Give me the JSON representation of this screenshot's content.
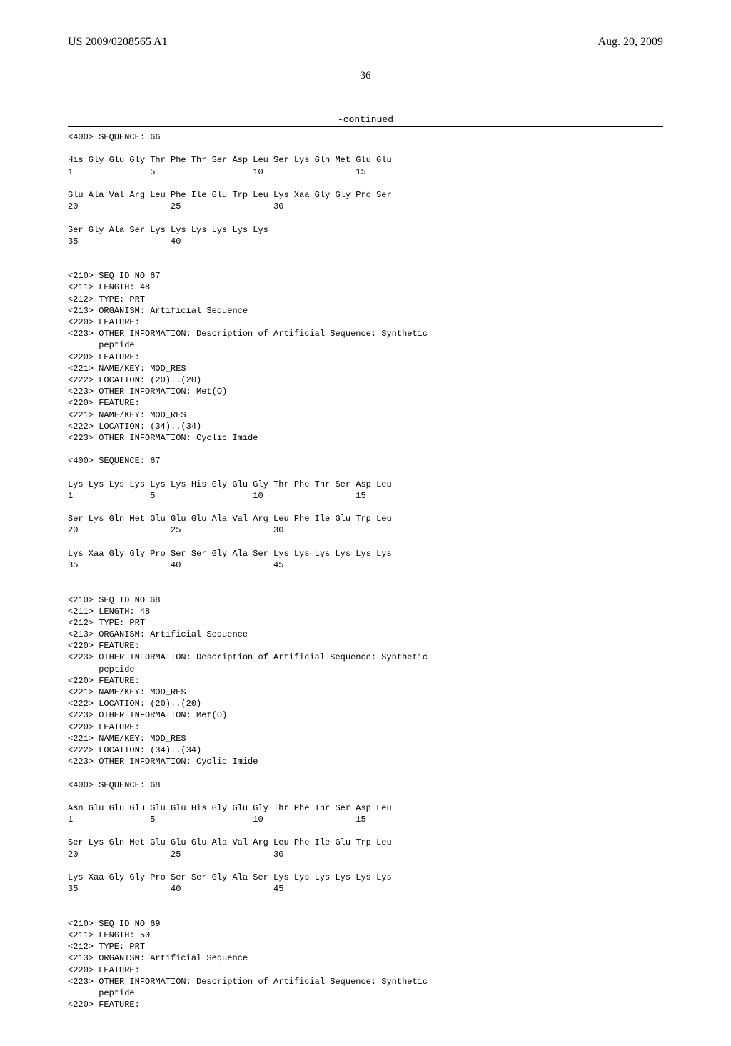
{
  "header": {
    "left": "US 2009/0208565 A1",
    "right": "Aug. 20, 2009"
  },
  "page_number": "36",
  "continued_label": "-continued",
  "body_text": "<400> SEQUENCE: 66\n\nHis Gly Glu Gly Thr Phe Thr Ser Asp Leu Ser Lys Gln Met Glu Glu\n1               5                   10                  15\n\nGlu Ala Val Arg Leu Phe Ile Glu Trp Leu Lys Xaa Gly Gly Pro Ser\n20                  25                  30\n\nSer Gly Ala Ser Lys Lys Lys Lys Lys Lys\n35                  40\n\n\n<210> SEQ ID NO 67\n<211> LENGTH: 48\n<212> TYPE: PRT\n<213> ORGANISM: Artificial Sequence\n<220> FEATURE:\n<223> OTHER INFORMATION: Description of Artificial Sequence: Synthetic\n      peptide\n<220> FEATURE:\n<221> NAME/KEY: MOD_RES\n<222> LOCATION: (20)..(20)\n<223> OTHER INFORMATION: Met(O)\n<220> FEATURE:\n<221> NAME/KEY: MOD_RES\n<222> LOCATION: (34)..(34)\n<223> OTHER INFORMATION: Cyclic Imide\n\n<400> SEQUENCE: 67\n\nLys Lys Lys Lys Lys Lys His Gly Glu Gly Thr Phe Thr Ser Asp Leu\n1               5                   10                  15\n\nSer Lys Gln Met Glu Glu Glu Ala Val Arg Leu Phe Ile Glu Trp Leu\n20                  25                  30\n\nLys Xaa Gly Gly Pro Ser Ser Gly Ala Ser Lys Lys Lys Lys Lys Lys\n35                  40                  45\n\n\n<210> SEQ ID NO 68\n<211> LENGTH: 48\n<212> TYPE: PRT\n<213> ORGANISM: Artificial Sequence\n<220> FEATURE:\n<223> OTHER INFORMATION: Description of Artificial Sequence: Synthetic\n      peptide\n<220> FEATURE:\n<221> NAME/KEY: MOD_RES\n<222> LOCATION: (20)..(20)\n<223> OTHER INFORMATION: Met(O)\n<220> FEATURE:\n<221> NAME/KEY: MOD_RES\n<222> LOCATION: (34)..(34)\n<223> OTHER INFORMATION: Cyclic Imide\n\n<400> SEQUENCE: 68\n\nAsn Glu Glu Glu Glu Glu His Gly Glu Gly Thr Phe Thr Ser Asp Leu\n1               5                   10                  15\n\nSer Lys Gln Met Glu Glu Glu Ala Val Arg Leu Phe Ile Glu Trp Leu\n20                  25                  30\n\nLys Xaa Gly Gly Pro Ser Ser Gly Ala Ser Lys Lys Lys Lys Lys Lys\n35                  40                  45\n\n\n<210> SEQ ID NO 69\n<211> LENGTH: 50\n<212> TYPE: PRT\n<213> ORGANISM: Artificial Sequence\n<220> FEATURE:\n<223> OTHER INFORMATION: Description of Artificial Sequence: Synthetic\n      peptide\n<220> FEATURE:"
}
